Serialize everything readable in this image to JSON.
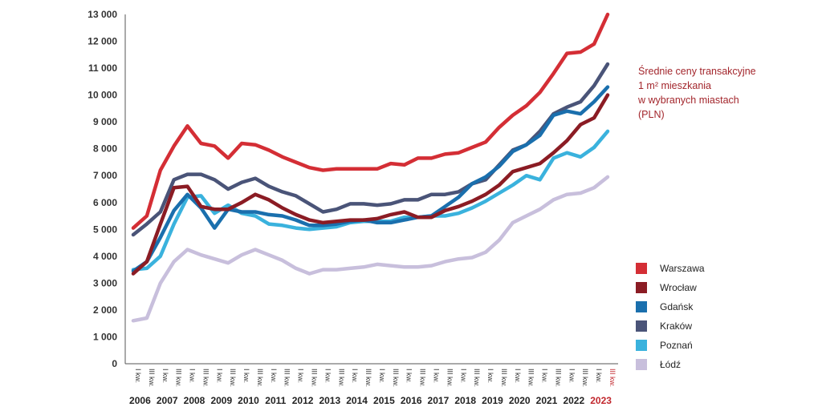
{
  "chart_data": {
    "type": "line",
    "title": [
      "Średnie ceny transakcyjne",
      "1 m² mieszkania",
      "w wybranych miastach",
      "(PLN)"
    ],
    "ylim": [
      0,
      13000
    ],
    "ytick_labels": [
      "0",
      "1 000",
      "2 000",
      "3 000",
      "4 000",
      "5 000",
      "6 000",
      "7 000",
      "8 000",
      "9 000",
      "10 000",
      "11 000",
      "12 000",
      "13 000"
    ],
    "x": [
      "I kw. 2006",
      "III kw. 2006",
      "I kw. 2007",
      "III kw. 2007",
      "I kw. 2008",
      "III kw. 2008",
      "I kw. 2009",
      "III kw. 2009",
      "I kw. 2010",
      "III kw. 2010",
      "I kw. 2011",
      "III kw. 2011",
      "I kw. 2012",
      "III kw. 2012",
      "I kw. 2013",
      "III kw. 2013",
      "I kw. 2014",
      "III kw. 2014",
      "I kw. 2015",
      "III kw. 2015",
      "I kw. 2016",
      "III kw. 2016",
      "I kw. 2017",
      "III kw. 2017",
      "I kw. 2018",
      "III kw. 2018",
      "I kw. 2019",
      "III kw. 2019",
      "I kw. 2020",
      "III kw. 2020",
      "I kw. 2021",
      "III kw. 2021",
      "I kw. 2022",
      "III kw. 2022",
      "I kw. 2023",
      "III kw. 2023"
    ],
    "xtick_labels": [
      "I kw.",
      "III kw.",
      "I kw.",
      "III kw.",
      "I kw.",
      "III kw.",
      "I kw.",
      "III kw.",
      "I kw.",
      "III kw.",
      "I kw.",
      "III kw.",
      "I kw.",
      "III kw.",
      "I kw.",
      "III kw.",
      "I kw.",
      "III kw.",
      "I kw.",
      "III kw.",
      "I kw.",
      "III kw.",
      "I kw.",
      "III kw.",
      "I kw.",
      "III kw.",
      "I kw.",
      "III kw.",
      "I kw.",
      "III kw.",
      "I kw.",
      "III kw.",
      "I kw.",
      "III kw.",
      "I kw.",
      "III kw."
    ],
    "years": [
      "2006",
      "2007",
      "2008",
      "2009",
      "2010",
      "2011",
      "2012",
      "2013",
      "2014",
      "2015",
      "2016",
      "2017",
      "2018",
      "2019",
      "2020",
      "2021",
      "2022",
      "2023"
    ],
    "highlight_color": "#c1272d",
    "grid": false,
    "legend": "right",
    "series": [
      {
        "name": "Warszawa",
        "color": "#d42e35",
        "values": [
          5050,
          5500,
          7200,
          8100,
          8850,
          8200,
          8100,
          7650,
          8200,
          8150,
          7950,
          7700,
          7500,
          7300,
          7200,
          7250,
          7250,
          7250,
          7250,
          7450,
          7400,
          7650,
          7650,
          7800,
          7850,
          8050,
          8250,
          8800,
          9250,
          9600,
          10100,
          10800,
          11550,
          11600,
          11900,
          13000
        ]
      },
      {
        "name": "Wrocław",
        "color": "#8b1c24",
        "values": [
          3350,
          3800,
          5200,
          6550,
          6600,
          5850,
          5750,
          5750,
          6000,
          6300,
          6100,
          5800,
          5550,
          5350,
          5250,
          5300,
          5350,
          5350,
          5400,
          5550,
          5650,
          5450,
          5450,
          5700,
          5850,
          6050,
          6300,
          6650,
          7150,
          7300,
          7450,
          7850,
          8300,
          8900,
          9150,
          10000
        ]
      },
      {
        "name": "Gdańsk",
        "color": "#1a6fad",
        "values": [
          3450,
          3800,
          4700,
          5700,
          6300,
          5800,
          5050,
          5750,
          5650,
          5650,
          5550,
          5500,
          5350,
          5150,
          5150,
          5200,
          5300,
          5350,
          5250,
          5250,
          5350,
          5450,
          5500,
          5850,
          6200,
          6700,
          6950,
          7350,
          7900,
          8150,
          8500,
          9250,
          9400,
          9300,
          9750,
          10300
        ]
      },
      {
        "name": "Kraków",
        "color": "#4a5478",
        "values": [
          4800,
          5200,
          5650,
          6850,
          7050,
          7050,
          6850,
          6500,
          6750,
          6900,
          6600,
          6400,
          6250,
          5950,
          5650,
          5750,
          5950,
          5950,
          5900,
          5950,
          6100,
          6100,
          6300,
          6300,
          6400,
          6700,
          6850,
          7400,
          7950,
          8150,
          8650,
          9300,
          9550,
          9750,
          10350,
          11150
        ]
      },
      {
        "name": "Poznań",
        "color": "#3ab2dd",
        "values": [
          3500,
          3550,
          4000,
          5200,
          6200,
          6250,
          5600,
          5900,
          5600,
          5500,
          5200,
          5150,
          5050,
          5000,
          5050,
          5100,
          5250,
          5300,
          5300,
          5300,
          5450,
          5450,
          5500,
          5500,
          5600,
          5800,
          6050,
          6350,
          6650,
          7000,
          6850,
          7650,
          7850,
          7700,
          8050,
          8650
        ]
      },
      {
        "name": "Łódź",
        "color": "#c8bfdc",
        "values": [
          1600,
          1700,
          3000,
          3800,
          4250,
          4050,
          3900,
          3750,
          4050,
          4250,
          4050,
          3850,
          3550,
          3350,
          3500,
          3500,
          3550,
          3600,
          3700,
          3650,
          3600,
          3600,
          3650,
          3800,
          3900,
          3950,
          4150,
          4600,
          5250,
          5500,
          5750,
          6100,
          6300,
          6350,
          6550,
          6950
        ]
      }
    ]
  }
}
